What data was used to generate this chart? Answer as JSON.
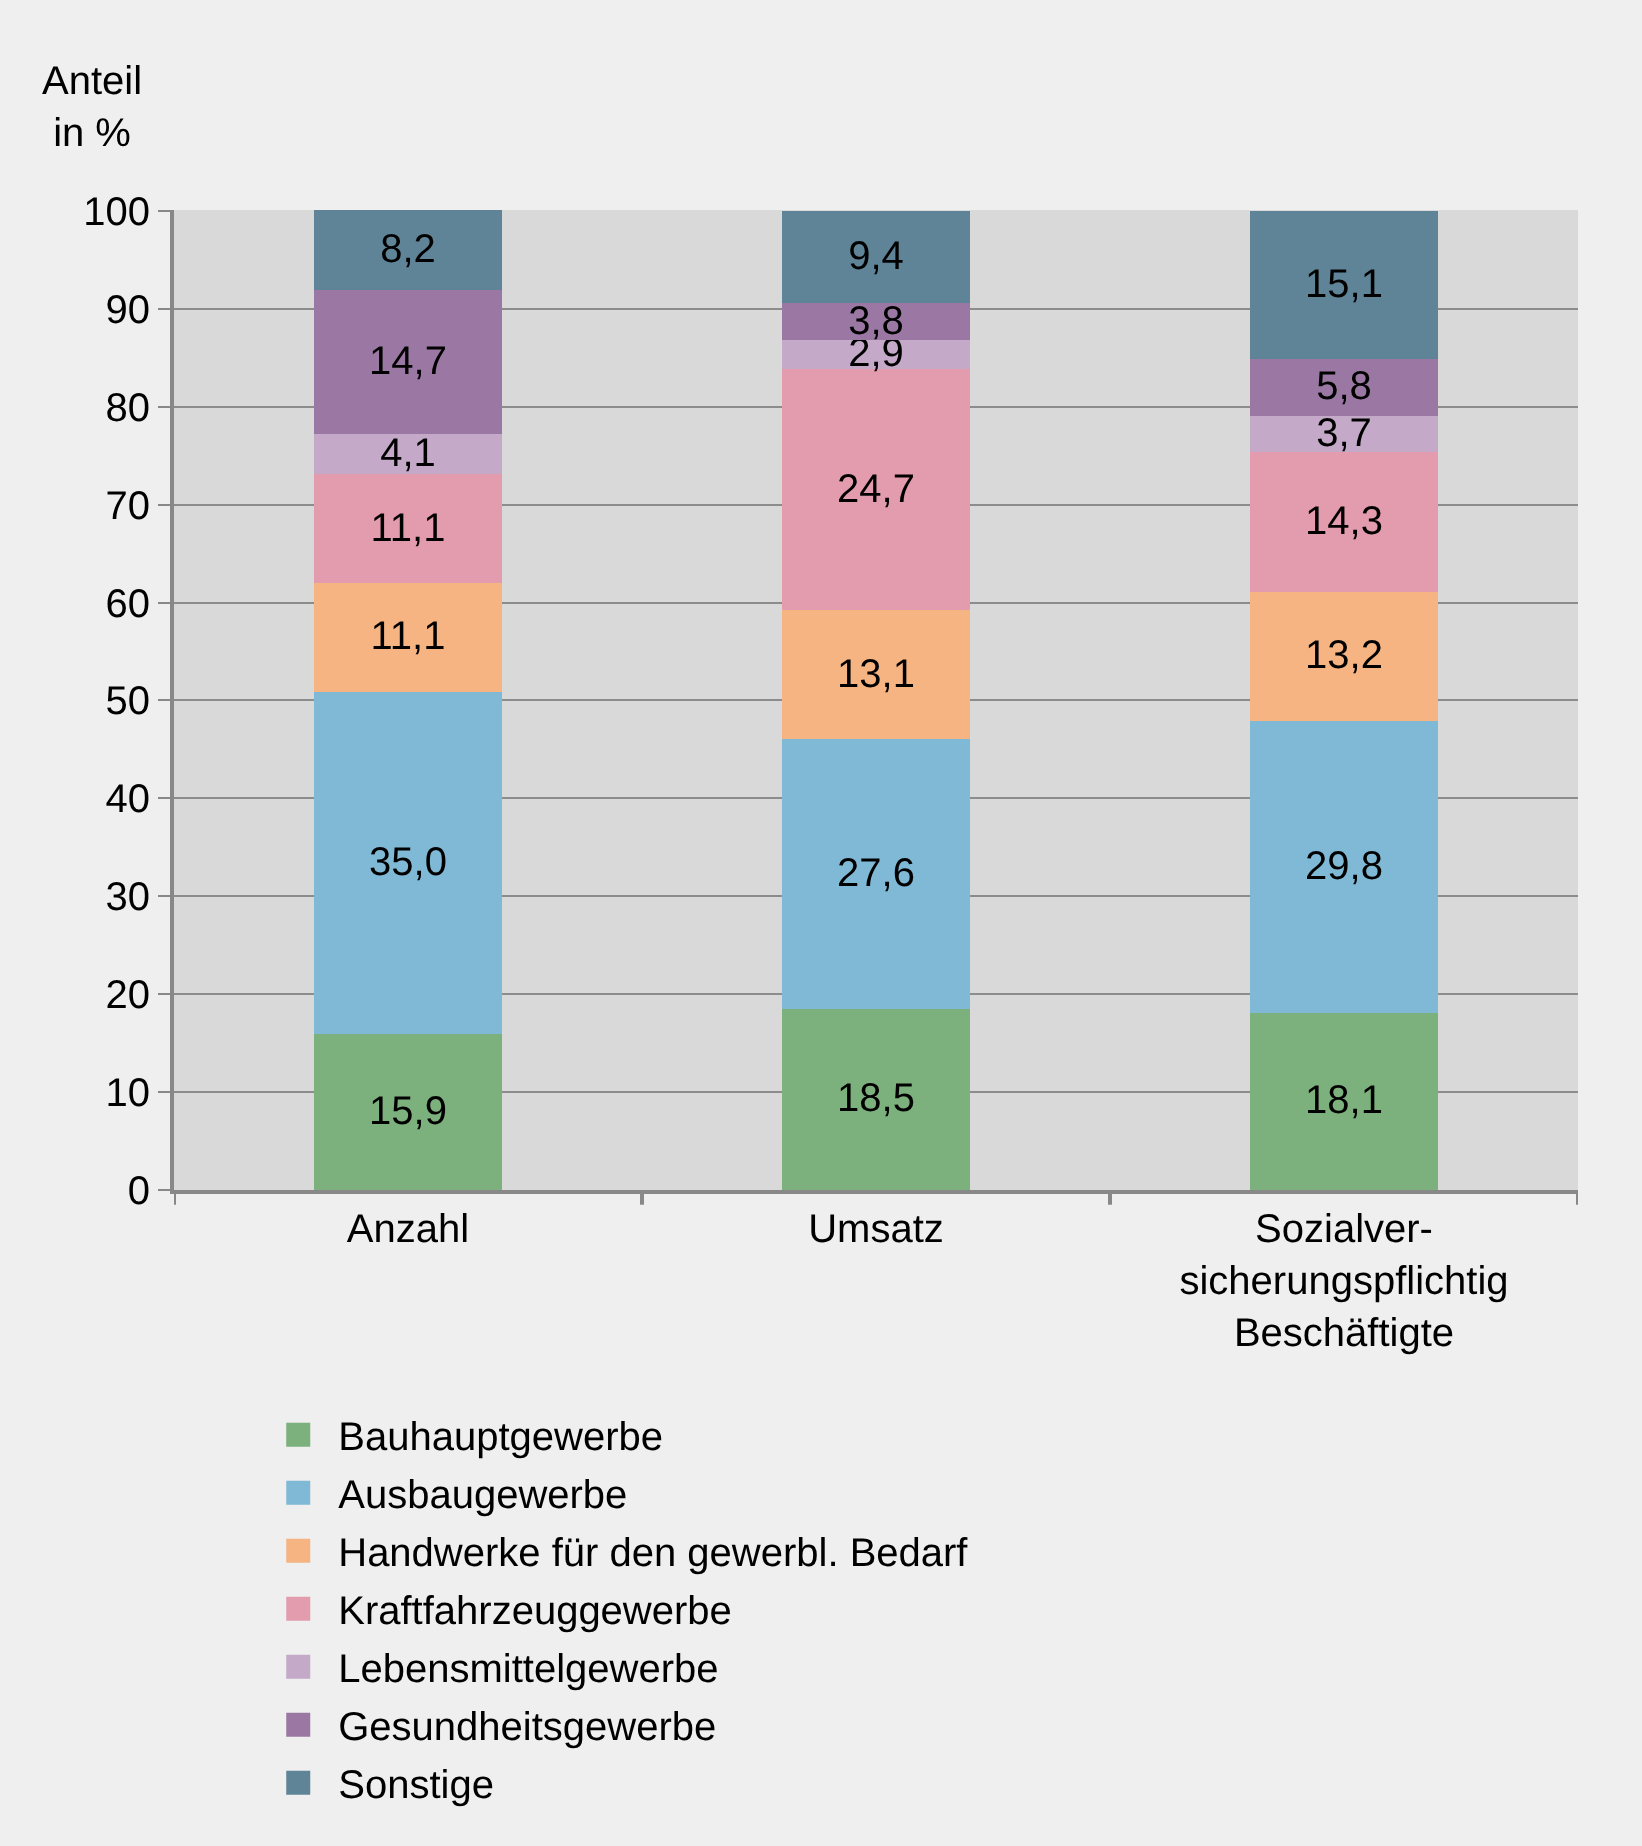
{
  "chart_data": {
    "type": "bar",
    "stacked": true,
    "ylabel": "Anteil\nin %",
    "categories": [
      "Anzahl",
      "Umsatz",
      "Sozialver-\nsicherungspflichtig\nBeschäftigte"
    ],
    "series": [
      {
        "name": "Bauhauptgewerbe",
        "color": "#7cb07c",
        "values": [
          15.9,
          18.5,
          18.1
        ],
        "value_labels": [
          "15,9",
          "18,5",
          "18,1"
        ]
      },
      {
        "name": "Ausbaugewerbe",
        "color": "#80b9d5",
        "values": [
          35.0,
          27.6,
          29.8
        ],
        "value_labels": [
          "35,0",
          "27,6",
          "29,8"
        ]
      },
      {
        "name": "Handwerke für den gewerbl. Bedarf",
        "color": "#f5b482",
        "values": [
          11.1,
          13.1,
          13.2
        ],
        "value_labels": [
          "11,1",
          "13,1",
          "13,2"
        ]
      },
      {
        "name": "Kraftfahrzeuggewerbe",
        "color": "#e39cae",
        "values": [
          11.1,
          24.7,
          14.3
        ],
        "value_labels": [
          "11,1",
          "24,7",
          "14,3"
        ]
      },
      {
        "name": "Lebensmittelgewerbe",
        "color": "#c4a9c9",
        "values": [
          4.1,
          2.9,
          3.7
        ],
        "value_labels": [
          "4,1",
          "2,9",
          "3,7"
        ]
      },
      {
        "name": "Gesundheitsgewerbe",
        "color": "#9b78a3",
        "values": [
          14.7,
          3.8,
          5.8
        ],
        "value_labels": [
          "14,7",
          "3,8",
          "5,8"
        ]
      },
      {
        "name": "Sonstige",
        "color": "#5f8497",
        "values": [
          8.2,
          9.4,
          15.1
        ],
        "value_labels": [
          "8,2",
          "9,4",
          "15,1"
        ]
      }
    ],
    "ylim": [
      0,
      100.1
    ],
    "yticks": [
      0,
      10,
      20,
      30,
      40,
      50,
      60,
      70,
      80,
      90,
      100
    ],
    "grid": "y",
    "legend": "bottom"
  }
}
